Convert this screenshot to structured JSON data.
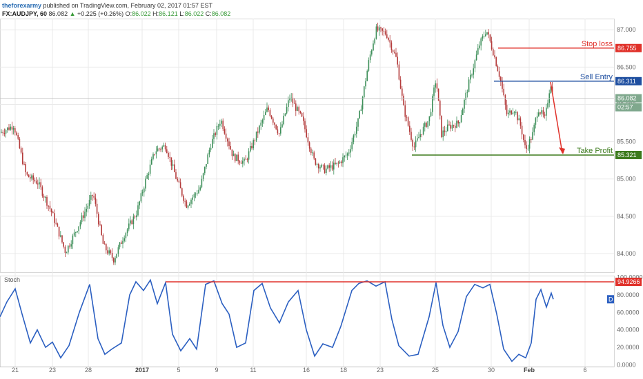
{
  "header": {
    "author": "theforexarmy",
    "published_text": " published on TradingView.com, February 02, 2017 01:57 EST",
    "symbol": "FX:AUDJPY, 60",
    "last": "86.082",
    "change_arrow": "▲",
    "change": "+0.225 (+0.26%)",
    "open_label": "O:",
    "open": "86.022",
    "high_label": "H:",
    "high": "86.121",
    "low_label": "L:",
    "low": "86.022",
    "close_label": "C:",
    "close": "86.082"
  },
  "colors": {
    "bull": "#3e8f5a",
    "bear": "#b43c3c",
    "stoch": "#2b5fc1",
    "stop": "#e0312a",
    "entry": "#1f4fa0",
    "tp": "#3b7a1c",
    "axis_text": "#666666",
    "grid": "#e9e9e9"
  },
  "chart_data": [
    {
      "type": "candlestick",
      "title": "",
      "ylim": [
        83.75,
        87.15
      ],
      "y_ticks": [
        "84.000",
        "84.500",
        "85.000",
        "85.500",
        "86.000",
        "86.500",
        "87.000"
      ],
      "close_path": [
        {
          "x": 0,
          "y": 85.62
        },
        {
          "x": 20,
          "y": 85.72
        },
        {
          "x": 38,
          "y": 85.05
        },
        {
          "x": 55,
          "y": 84.95
        },
        {
          "x": 75,
          "y": 84.55
        },
        {
          "x": 95,
          "y": 84.02
        },
        {
          "x": 115,
          "y": 84.4
        },
        {
          "x": 135,
          "y": 84.8
        },
        {
          "x": 150,
          "y": 84.1
        },
        {
          "x": 165,
          "y": 83.92
        },
        {
          "x": 180,
          "y": 84.25
        },
        {
          "x": 198,
          "y": 84.55
        },
        {
          "x": 210,
          "y": 84.95
        },
        {
          "x": 225,
          "y": 85.38
        },
        {
          "x": 240,
          "y": 85.45
        },
        {
          "x": 255,
          "y": 85.02
        },
        {
          "x": 270,
          "y": 84.65
        },
        {
          "x": 290,
          "y": 84.88
        },
        {
          "x": 305,
          "y": 85.45
        },
        {
          "x": 320,
          "y": 85.8
        },
        {
          "x": 338,
          "y": 85.3
        },
        {
          "x": 355,
          "y": 85.22
        },
        {
          "x": 372,
          "y": 85.6
        },
        {
          "x": 388,
          "y": 85.95
        },
        {
          "x": 405,
          "y": 85.6
        },
        {
          "x": 420,
          "y": 86.1
        },
        {
          "x": 438,
          "y": 85.8
        },
        {
          "x": 455,
          "y": 85.25
        },
        {
          "x": 470,
          "y": 85.12
        },
        {
          "x": 490,
          "y": 85.2
        },
        {
          "x": 505,
          "y": 85.35
        },
        {
          "x": 520,
          "y": 85.8
        },
        {
          "x": 535,
          "y": 86.6
        },
        {
          "x": 545,
          "y": 87.0
        },
        {
          "x": 560,
          "y": 86.95
        },
        {
          "x": 575,
          "y": 86.6
        },
        {
          "x": 585,
          "y": 85.95
        },
        {
          "x": 600,
          "y": 85.42
        },
        {
          "x": 610,
          "y": 85.62
        },
        {
          "x": 622,
          "y": 85.8
        },
        {
          "x": 632,
          "y": 86.35
        },
        {
          "x": 640,
          "y": 85.6
        },
        {
          "x": 650,
          "y": 85.7
        },
        {
          "x": 665,
          "y": 85.75
        },
        {
          "x": 680,
          "y": 86.3
        },
        {
          "x": 695,
          "y": 86.8
        },
        {
          "x": 705,
          "y": 87.0
        },
        {
          "x": 715,
          "y": 86.7
        },
        {
          "x": 725,
          "y": 86.35
        },
        {
          "x": 735,
          "y": 85.85
        },
        {
          "x": 745,
          "y": 85.95
        },
        {
          "x": 755,
          "y": 85.7
        },
        {
          "x": 762,
          "y": 85.38
        },
        {
          "x": 772,
          "y": 85.6
        },
        {
          "x": 780,
          "y": 85.95
        },
        {
          "x": 790,
          "y": 85.8
        },
        {
          "x": 798,
          "y": 86.3
        },
        {
          "x": 802,
          "y": 86.08
        }
      ],
      "x_ticks": [
        "21",
        "23",
        "28",
        "2017",
        "5",
        "9",
        "11",
        "16",
        "18",
        "23",
        "25",
        "30",
        "Feb",
        "6"
      ],
      "x_tick_positions": [
        22,
        76,
        128,
        206,
        259,
        314,
        367,
        444,
        498,
        551,
        631,
        712,
        767,
        848
      ],
      "levels": [
        {
          "name": "Stop loss",
          "value": 86.755,
          "label": "86.755",
          "x_start": 722
        },
        {
          "name": "Sell Entry",
          "value": 86.311,
          "label": "86.311",
          "x_start": 716
        },
        {
          "name": "Take Profit",
          "value": 85.321,
          "label": "85.321",
          "x_start": 597
        }
      ],
      "last_price": {
        "value": 86.082,
        "label": "86.082",
        "countdown": "02:57"
      },
      "projection": {
        "from_value": 86.3,
        "to_value": 85.35
      }
    },
    {
      "type": "line",
      "title": "Stoch",
      "ylim": [
        -2,
        102
      ],
      "y_ticks": [
        "100.0000",
        "80.0000",
        "60.0000",
        "40.0000",
        "20.0000",
        "0.0000"
      ],
      "series": [
        {
          "name": "",
          "values": []
        }
      ],
      "path": [
        {
          "x": 0,
          "y": 55
        },
        {
          "x": 10,
          "y": 72
        },
        {
          "x": 22,
          "y": 87
        },
        {
          "x": 32,
          "y": 58
        },
        {
          "x": 44,
          "y": 25
        },
        {
          "x": 54,
          "y": 40
        },
        {
          "x": 66,
          "y": 20
        },
        {
          "x": 76,
          "y": 26
        },
        {
          "x": 88,
          "y": 8
        },
        {
          "x": 100,
          "y": 22
        },
        {
          "x": 115,
          "y": 60
        },
        {
          "x": 130,
          "y": 92
        },
        {
          "x": 142,
          "y": 30
        },
        {
          "x": 152,
          "y": 12
        },
        {
          "x": 162,
          "y": 18
        },
        {
          "x": 176,
          "y": 25
        },
        {
          "x": 188,
          "y": 80
        },
        {
          "x": 197,
          "y": 95
        },
        {
          "x": 208,
          "y": 85
        },
        {
          "x": 218,
          "y": 97
        },
        {
          "x": 228,
          "y": 70
        },
        {
          "x": 240,
          "y": 94
        },
        {
          "x": 250,
          "y": 35
        },
        {
          "x": 262,
          "y": 16
        },
        {
          "x": 275,
          "y": 30
        },
        {
          "x": 285,
          "y": 18
        },
        {
          "x": 298,
          "y": 92
        },
        {
          "x": 310,
          "y": 96
        },
        {
          "x": 322,
          "y": 70
        },
        {
          "x": 332,
          "y": 58
        },
        {
          "x": 343,
          "y": 20
        },
        {
          "x": 356,
          "y": 25
        },
        {
          "x": 368,
          "y": 85
        },
        {
          "x": 380,
          "y": 93
        },
        {
          "x": 392,
          "y": 65
        },
        {
          "x": 405,
          "y": 48
        },
        {
          "x": 418,
          "y": 72
        },
        {
          "x": 432,
          "y": 85
        },
        {
          "x": 444,
          "y": 40
        },
        {
          "x": 456,
          "y": 10
        },
        {
          "x": 468,
          "y": 24
        },
        {
          "x": 482,
          "y": 20
        },
        {
          "x": 494,
          "y": 44
        },
        {
          "x": 510,
          "y": 85
        },
        {
          "x": 520,
          "y": 93
        },
        {
          "x": 532,
          "y": 96
        },
        {
          "x": 545,
          "y": 90
        },
        {
          "x": 558,
          "y": 95
        },
        {
          "x": 568,
          "y": 52
        },
        {
          "x": 578,
          "y": 22
        },
        {
          "x": 593,
          "y": 10
        },
        {
          "x": 606,
          "y": 12
        },
        {
          "x": 622,
          "y": 55
        },
        {
          "x": 632,
          "y": 94
        },
        {
          "x": 642,
          "y": 45
        },
        {
          "x": 652,
          "y": 20
        },
        {
          "x": 664,
          "y": 38
        },
        {
          "x": 676,
          "y": 78
        },
        {
          "x": 688,
          "y": 92
        },
        {
          "x": 700,
          "y": 88
        },
        {
          "x": 710,
          "y": 92
        },
        {
          "x": 720,
          "y": 58
        },
        {
          "x": 730,
          "y": 18
        },
        {
          "x": 742,
          "y": 4
        },
        {
          "x": 752,
          "y": 12
        },
        {
          "x": 762,
          "y": 8
        },
        {
          "x": 770,
          "y": 25
        },
        {
          "x": 777,
          "y": 75
        },
        {
          "x": 784,
          "y": 86
        },
        {
          "x": 792,
          "y": 66
        },
        {
          "x": 799,
          "y": 82
        },
        {
          "x": 802,
          "y": 75
        }
      ],
      "level": {
        "value": 94.9266,
        "label": "94.9266",
        "x_start": 240
      },
      "d_badge": "D"
    }
  ],
  "annotations": {
    "stop_loss_label": "Stop loss",
    "sell_entry_label": "Sell Entry",
    "take_profit_label": "Take Profit"
  }
}
